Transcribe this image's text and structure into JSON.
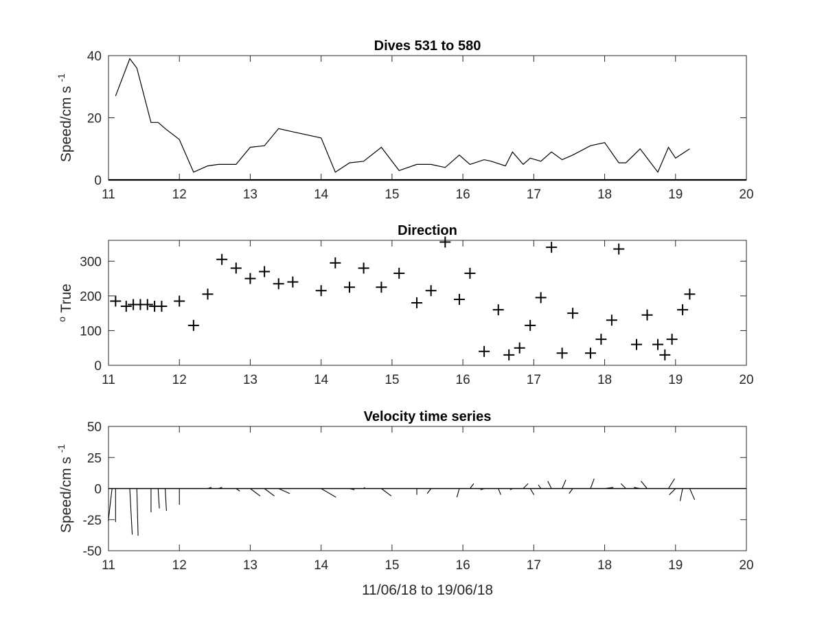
{
  "chart_data": [
    {
      "type": "line",
      "title": "Dives 531 to 580",
      "ylabel": "Speed/cm s",
      "ylabel_sup": "-1",
      "xlabel": "",
      "xlim": [
        11,
        20
      ],
      "ylim": [
        0,
        40
      ],
      "xticks": [
        "11",
        "12",
        "13",
        "14",
        "15",
        "16",
        "17",
        "18",
        "19",
        "20"
      ],
      "yticks": [
        "0",
        "20",
        "40"
      ],
      "grid": false,
      "x": [
        11.1,
        11.3,
        11.4,
        11.6,
        11.7,
        11.8,
        12.0,
        12.2,
        12.4,
        12.55,
        12.8,
        13.0,
        13.2,
        13.4,
        13.6,
        14.0,
        14.2,
        14.4,
        14.6,
        14.85,
        15.1,
        15.35,
        15.55,
        15.75,
        15.95,
        16.1,
        16.3,
        16.4,
        16.6,
        16.7,
        16.85,
        16.95,
        17.1,
        17.25,
        17.4,
        17.55,
        17.8,
        18.0,
        18.2,
        18.3,
        18.5,
        18.6,
        18.75,
        18.9,
        19.0,
        19.2
      ],
      "y": [
        27,
        39,
        36,
        18.5,
        18.5,
        16.5,
        13,
        2.5,
        4.5,
        5,
        5,
        10.5,
        11,
        16.5,
        15.5,
        13.5,
        2.5,
        5.5,
        6,
        10.5,
        3,
        5,
        5,
        4,
        8,
        5,
        6.5,
        6,
        4.5,
        9,
        5,
        7,
        6,
        9,
        6.5,
        8,
        11,
        12,
        5.5,
        5.5,
        10,
        7,
        2.5,
        10.5,
        7,
        10
      ]
    },
    {
      "type": "scatter",
      "title": "Direction",
      "ylabel": "True",
      "ylabel_sup": "o",
      "xlabel": "",
      "xlim": [
        11,
        20
      ],
      "ylim": [
        0,
        360
      ],
      "xticks": [
        "11",
        "12",
        "13",
        "14",
        "15",
        "16",
        "17",
        "18",
        "19",
        "20"
      ],
      "yticks": [
        "0",
        "100",
        "200",
        "300"
      ],
      "grid": false,
      "marker": "+",
      "x": [
        11.1,
        11.25,
        11.35,
        11.45,
        11.55,
        11.65,
        11.75,
        12.0,
        12.2,
        12.4,
        12.6,
        12.8,
        13.0,
        13.2,
        13.4,
        13.6,
        14.0,
        14.2,
        14.4,
        14.6,
        14.85,
        15.1,
        15.35,
        15.55,
        15.75,
        15.95,
        16.1,
        16.3,
        16.5,
        16.65,
        16.8,
        16.95,
        17.1,
        17.25,
        17.4,
        17.55,
        17.8,
        17.95,
        18.1,
        18.2,
        18.45,
        18.6,
        18.75,
        18.85,
        18.95,
        19.1,
        19.2
      ],
      "y": [
        185,
        170,
        175,
        175,
        175,
        170,
        170,
        185,
        115,
        205,
        305,
        280,
        250,
        270,
        235,
        240,
        215,
        295,
        225,
        280,
        225,
        265,
        180,
        215,
        355,
        190,
        265,
        40,
        160,
        30,
        50,
        115,
        195,
        340,
        35,
        150,
        35,
        75,
        130,
        335,
        60,
        145,
        60,
        30,
        75,
        160,
        205
      ]
    },
    {
      "type": "line",
      "subtype": "stick",
      "title": "Velocity time series",
      "ylabel": "Speed/cm s",
      "ylabel_sup": "-1",
      "xlabel": "11/06/18 to 19/06/18",
      "xlim": [
        11,
        20
      ],
      "ylim": [
        -50,
        50
      ],
      "xticks": [
        "11",
        "12",
        "13",
        "14",
        "15",
        "16",
        "17",
        "18",
        "19",
        "20"
      ],
      "yticks": [
        "-50",
        "-25",
        "0",
        "25",
        "50"
      ],
      "grid": false,
      "series": [
        {
          "x": [
            11.05,
            11.1,
            11.3,
            11.4,
            11.6,
            11.7,
            11.8,
            12.0,
            12.2,
            12.4,
            12.55,
            12.8,
            13.0,
            13.2,
            13.4,
            14.0,
            14.2,
            14.4,
            14.6,
            14.85,
            15.35,
            15.55,
            15.75,
            15.95,
            16.1,
            16.3,
            16.5,
            16.7,
            16.85,
            16.95,
            17.1,
            17.25,
            17.4,
            17.55,
            17.8,
            18.0,
            18.2,
            18.3,
            18.5,
            18.6,
            18.9,
            19.0,
            19.1,
            19.2
          ],
          "u": [
            -3,
            0,
            2,
            1,
            0,
            1,
            1,
            0,
            -1,
            3,
            3,
            3,
            8,
            8,
            9,
            12,
            1,
            4,
            1,
            8,
            0,
            -3,
            0,
            -2,
            3,
            -3,
            2,
            -2,
            4,
            3,
            -2,
            -3,
            3,
            -3,
            3,
            7,
            6,
            -4,
            -5,
            -5,
            5,
            -5,
            -2,
            4
          ],
          "v": [
            -26,
            -27,
            -37,
            -38,
            -19,
            -16,
            -18,
            -13,
            0,
            1,
            1,
            -2,
            -6,
            -6,
            -4,
            -7,
            0,
            -1,
            1,
            -6,
            -5,
            -4,
            0,
            -7,
            4,
            -1,
            -5,
            -1,
            4,
            -5,
            3,
            6,
            7,
            -4,
            8,
            1,
            0,
            4,
            1,
            6,
            8,
            -5,
            -10,
            -9
          ]
        }
      ]
    }
  ]
}
